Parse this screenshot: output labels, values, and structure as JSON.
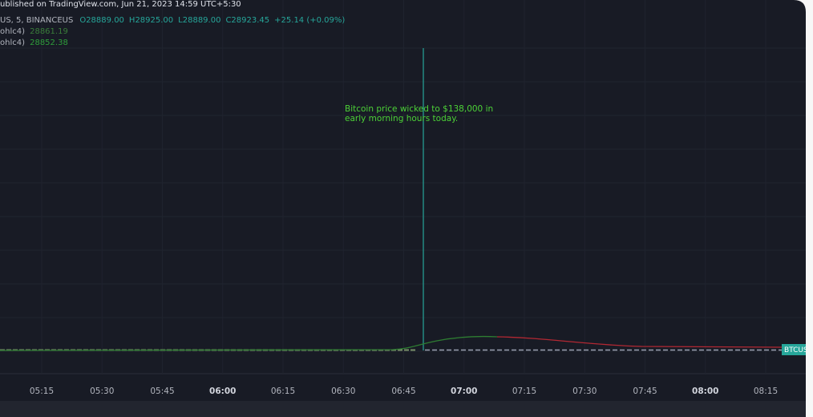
{
  "header": {
    "published": "ublished on TradingView.com, Jun 21, 2023 14:59 UTC+5:30"
  },
  "legend": {
    "symbol": "US, 5, BINANCEUS",
    "values": [
      "O28889.00",
      "H28925.00",
      "L28889.00",
      "C28923.45",
      "+25.14 (+0.09%)"
    ]
  },
  "indicators": [
    {
      "label": "ohlc4)",
      "value": "28861.19"
    },
    {
      "label": "ohlc4)",
      "value": "28852.38"
    }
  ],
  "annotation": {
    "lines": [
      "Bitcoin price wicked to $138,000 in",
      "early morning hours today."
    ]
  },
  "x_axis": {
    "labels": [
      "05:15",
      "05:30",
      "05:45",
      "06:00",
      "06:15",
      "06:30",
      "06:45",
      "07:00",
      "07:15",
      "07:30",
      "07:45",
      "08:00",
      "08:15"
    ]
  },
  "price_tag": "BTCUSD"
}
